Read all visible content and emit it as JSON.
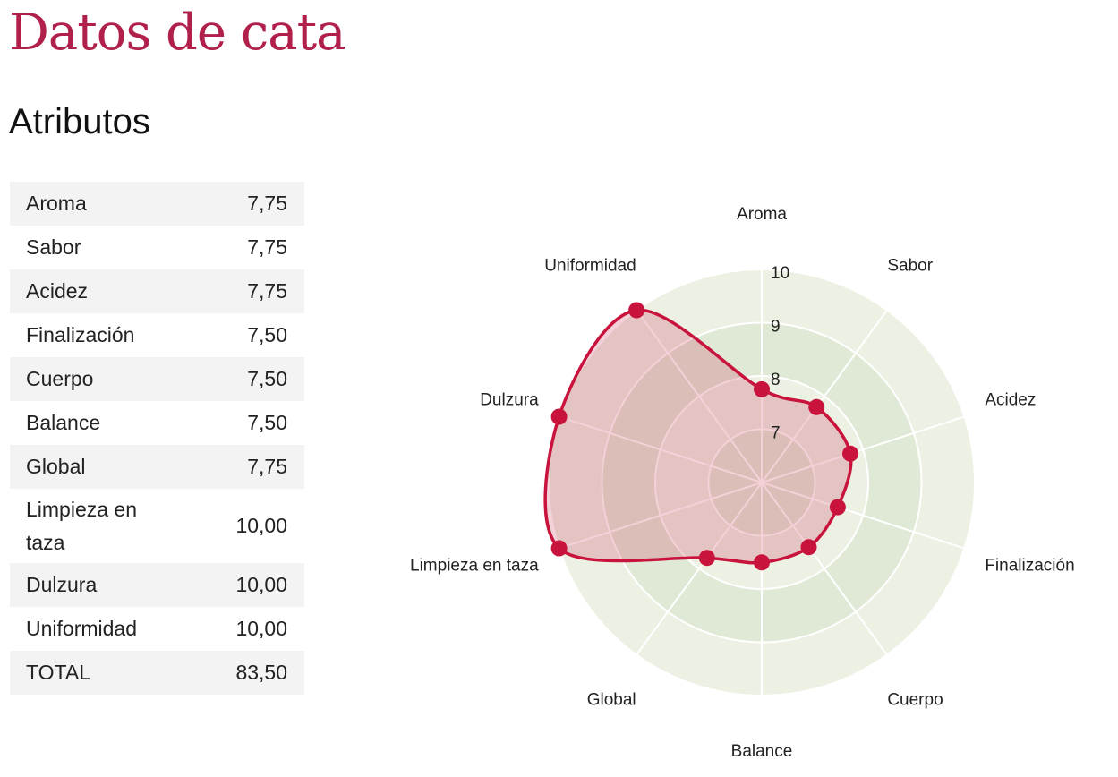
{
  "page": {
    "title": "Datos de cata",
    "section_title": "Atributos"
  },
  "table": {
    "rows": [
      {
        "label": "Aroma",
        "value": "7,75"
      },
      {
        "label": "Sabor",
        "value": "7,75"
      },
      {
        "label": "Acidez",
        "value": "7,75"
      },
      {
        "label": "Finalización",
        "value": "7,50"
      },
      {
        "label": "Cuerpo",
        "value": "7,50"
      },
      {
        "label": "Balance",
        "value": "7,50"
      },
      {
        "label": "Global",
        "value": "7,75"
      },
      {
        "label": "Limpieza en taza",
        "value": "10,00"
      },
      {
        "label": "Dulzura",
        "value": "10,00"
      },
      {
        "label": "Uniformidad",
        "value": "10,00"
      },
      {
        "label": "TOTAL",
        "value": "83,50"
      }
    ]
  },
  "chart_data": {
    "type": "radar",
    "categories": [
      "Aroma",
      "Sabor",
      "Acidez",
      "Finalización",
      "Cuerpo",
      "Balance",
      "Global",
      "Limpieza en taza",
      "Dulzura",
      "Uniformidad"
    ],
    "values": [
      7.75,
      7.75,
      7.75,
      7.5,
      7.5,
      7.5,
      7.75,
      10.0,
      10.0,
      10.0
    ],
    "rlim": [
      6,
      10
    ],
    "radial_ticks": [
      7,
      8,
      9,
      10
    ],
    "colors": {
      "line": "#c8143c",
      "fill": "#c8143c",
      "band_light": "#ecf1e4",
      "band_dark": "#e0e9d6",
      "grid": "#ffffff"
    }
  }
}
